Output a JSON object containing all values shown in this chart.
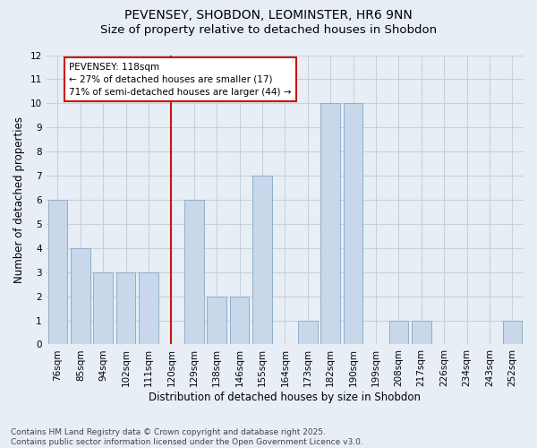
{
  "title_line1": "PEVENSEY, SHOBDON, LEOMINSTER, HR6 9NN",
  "title_line2": "Size of property relative to detached houses in Shobdon",
  "xlabel": "Distribution of detached houses by size in Shobdon",
  "ylabel": "Number of detached properties",
  "categories": [
    "76sqm",
    "85sqm",
    "94sqm",
    "102sqm",
    "111sqm",
    "120sqm",
    "129sqm",
    "138sqm",
    "146sqm",
    "155sqm",
    "164sqm",
    "173sqm",
    "182sqm",
    "190sqm",
    "199sqm",
    "208sqm",
    "217sqm",
    "226sqm",
    "234sqm",
    "243sqm",
    "252sqm"
  ],
  "values": [
    6,
    4,
    3,
    3,
    3,
    0,
    6,
    2,
    2,
    7,
    0,
    1,
    10,
    10,
    0,
    1,
    1,
    0,
    0,
    0,
    1
  ],
  "bar_color": "#c8d8ea",
  "bar_edgecolor": "#8eafc8",
  "grid_color": "#c8d0da",
  "background_color": "#e8eef5",
  "vline_x_index": 5,
  "vline_color": "#cc1111",
  "annotation_line1": "PEVENSEY: 118sqm",
  "annotation_line2": "← 27% of detached houses are smaller (17)",
  "annotation_line3": "71% of semi-detached houses are larger (44) →",
  "annotation_box_facecolor": "#ffffff",
  "annotation_box_edgecolor": "#cc1111",
  "ylim": [
    0,
    12
  ],
  "yticks": [
    0,
    1,
    2,
    3,
    4,
    5,
    6,
    7,
    8,
    9,
    10,
    11,
    12
  ],
  "footer_line1": "Contains HM Land Registry data © Crown copyright and database right 2025.",
  "footer_line2": "Contains public sector information licensed under the Open Government Licence v3.0.",
  "title_fontsize": 10,
  "subtitle_fontsize": 9.5,
  "axis_label_fontsize": 8.5,
  "tick_fontsize": 7.5,
  "annotation_fontsize": 7.5,
  "footer_fontsize": 6.5,
  "bar_width": 0.85
}
